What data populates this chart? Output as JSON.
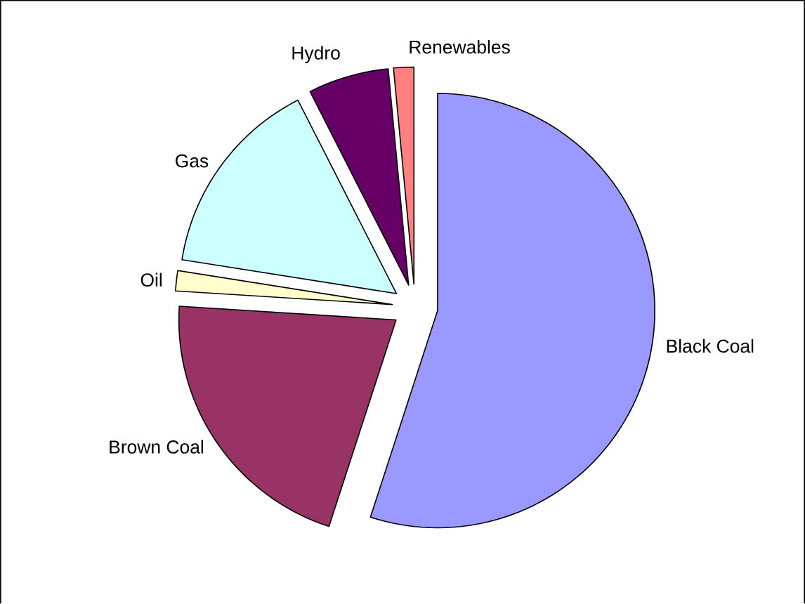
{
  "chart_data": {
    "type": "pie",
    "categories": [
      "Black Coal",
      "Brown Coal",
      "Oil",
      "Gas",
      "Hydro",
      "Renewables"
    ],
    "values": [
      55,
      21,
      1.5,
      15,
      6,
      1.5
    ],
    "colors": [
      "#9999ff",
      "#993366",
      "#ffffcc",
      "#ccffff",
      "#660066",
      "#ff8080"
    ]
  }
}
